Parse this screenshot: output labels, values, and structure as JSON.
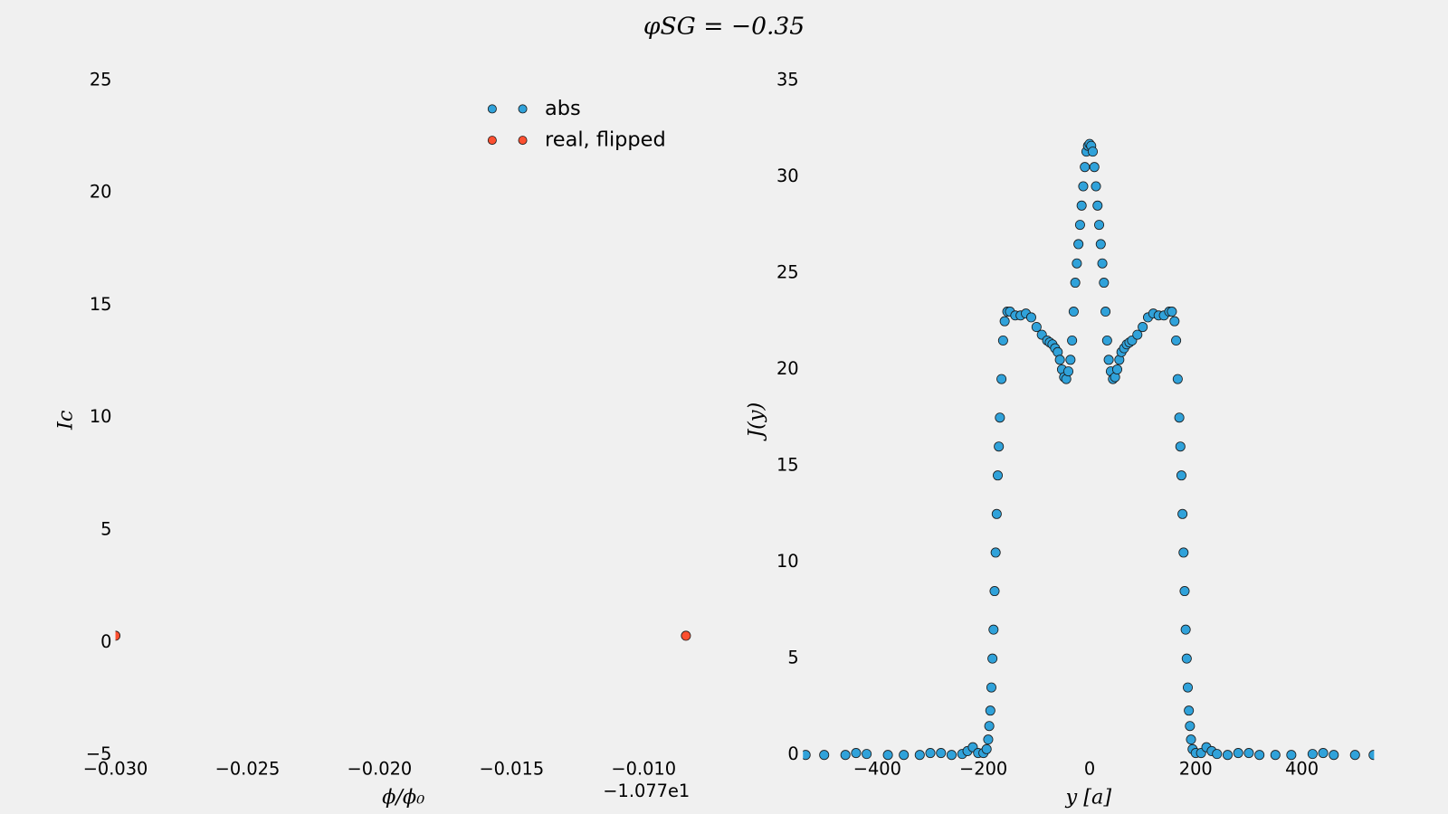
{
  "title": "φSG = −0.35",
  "chart_data": [
    {
      "type": "scatter",
      "x_label": "ϕ/ϕ₀",
      "y_label": "Ic",
      "x_offset_label": "−1.077e1",
      "xlim": [
        -0.03,
        -0.0082
      ],
      "ylim": [
        -5,
        25
      ],
      "xticks": [
        {
          "value": -0.03,
          "label": "−0.030"
        },
        {
          "value": -0.025,
          "label": "−0.025"
        },
        {
          "value": -0.02,
          "label": "−0.020"
        },
        {
          "value": -0.015,
          "label": "−0.015"
        },
        {
          "value": -0.01,
          "label": "−0.010"
        }
      ],
      "yticks": [
        {
          "value": -5,
          "label": "−5"
        },
        0,
        5,
        10,
        15,
        20,
        25
      ],
      "legend": "upper center",
      "series": [
        {
          "name": "abs",
          "color": "#30a2da",
          "x": [],
          "values": []
        },
        {
          "name": "real, flipped",
          "color": "#fc4f30",
          "x": [
            -0.03,
            -0.0084
          ],
          "values": [
            0.3,
            0.3
          ]
        }
      ]
    },
    {
      "type": "scatter",
      "x_label": "y [a]",
      "y_label": "J(y)",
      "xlim": [
        -540,
        536
      ],
      "ylim": [
        0,
        35
      ],
      "xticks": [
        {
          "value": -400,
          "label": "−400"
        },
        {
          "value": -200,
          "label": "−200"
        },
        0,
        200,
        400
      ],
      "yticks": [
        0,
        5,
        10,
        15,
        20,
        25,
        30,
        35
      ],
      "series": [
        {
          "color": "#30a2da",
          "x": [
            -535,
            -500,
            -460,
            -440,
            -420,
            -380,
            -350,
            -320,
            -300,
            -280,
            -260,
            -240,
            -230,
            -220,
            -210,
            -200,
            -194,
            -191,
            -189,
            -187,
            -185,
            -183,
            -181,
            -179,
            -177,
            -175,
            -173,
            -171,
            -169,
            -166,
            -163,
            -160,
            -155,
            -150,
            -140,
            -130,
            -120,
            -110,
            -100,
            -90,
            -80,
            -75,
            -70,
            -65,
            -60,
            -56,
            -52,
            -48,
            -44,
            -40,
            -36,
            -33,
            -30,
            -27,
            -24,
            -21,
            -18,
            -15,
            -12,
            -9,
            -6,
            -3,
            0,
            3,
            6,
            9,
            12,
            15,
            18,
            21,
            24,
            27,
            30,
            33,
            36,
            40,
            44,
            48,
            52,
            56,
            60,
            65,
            70,
            75,
            80,
            90,
            100,
            110,
            120,
            130,
            140,
            150,
            155,
            160,
            163,
            166,
            169,
            171,
            173,
            175,
            177,
            179,
            181,
            183,
            185,
            187,
            189,
            191,
            194,
            200,
            210,
            220,
            230,
            240,
            260,
            280,
            300,
            320,
            350,
            380,
            420,
            440,
            460,
            500,
            535
          ],
          "values": [
            0,
            0,
            0,
            0.1,
            0.05,
            0,
            0,
            0,
            0.1,
            0.1,
            0,
            0.05,
            0.2,
            0.4,
            0.1,
            0.1,
            0.3,
            0.8,
            1.5,
            2.3,
            3.5,
            5.0,
            6.5,
            8.5,
            10.5,
            12.5,
            14.5,
            16.0,
            17.5,
            19.5,
            21.5,
            22.5,
            23.0,
            23.0,
            22.8,
            22.8,
            22.9,
            22.7,
            22.2,
            21.8,
            21.5,
            21.4,
            21.3,
            21.1,
            20.9,
            20.5,
            20.0,
            19.6,
            19.5,
            19.9,
            20.5,
            21.5,
            23.0,
            24.5,
            25.5,
            26.5,
            27.5,
            28.5,
            29.5,
            30.5,
            31.3,
            31.6,
            31.7,
            31.6,
            31.3,
            30.5,
            29.5,
            28.5,
            27.5,
            26.5,
            25.5,
            24.5,
            23.0,
            21.5,
            20.5,
            19.9,
            19.5,
            19.6,
            20.0,
            20.5,
            20.9,
            21.1,
            21.3,
            21.4,
            21.5,
            21.8,
            22.2,
            22.7,
            22.9,
            22.8,
            22.8,
            23.0,
            23.0,
            22.5,
            21.5,
            19.5,
            17.5,
            16.0,
            14.5,
            12.5,
            10.5,
            8.5,
            6.5,
            5.0,
            3.5,
            2.3,
            1.5,
            0.8,
            0.3,
            0.1,
            0.1,
            0.4,
            0.2,
            0.05,
            0,
            0.1,
            0.1,
            0,
            0,
            0,
            0.05,
            0.1,
            0,
            0,
            0
          ]
        }
      ]
    }
  ]
}
